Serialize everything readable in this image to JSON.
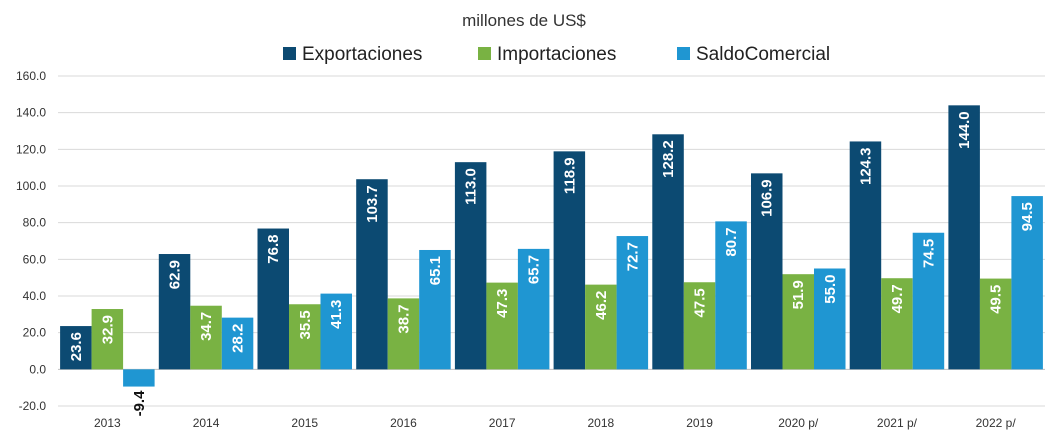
{
  "chart_data": {
    "type": "bar",
    "title": "",
    "subtitle": "millones de US$",
    "xlabel": "",
    "ylabel": "",
    "categories": [
      "2013",
      "2014",
      "2015",
      "2016",
      "2017",
      "2018",
      "2019",
      "2020 p/",
      "2021 p/",
      "2022 p/"
    ],
    "series": [
      {
        "name": "Exportaciones",
        "color": "#0c4a72",
        "values": [
          23.6,
          62.9,
          76.8,
          103.7,
          113.0,
          118.9,
          128.2,
          106.9,
          124.3,
          144.0
        ]
      },
      {
        "name": "Importaciones",
        "color": "#79b243",
        "values": [
          32.9,
          34.7,
          35.5,
          38.7,
          47.3,
          46.2,
          47.5,
          51.9,
          49.7,
          49.5
        ]
      },
      {
        "name": "SaldoComercial",
        "color": "#1f96d2",
        "values": [
          -9.4,
          28.2,
          41.3,
          65.1,
          65.7,
          72.7,
          80.7,
          55.0,
          74.5,
          94.5
        ]
      }
    ],
    "ylim": [
      -20,
      160
    ],
    "yticks": [
      "160.0",
      "140.0",
      "120.0",
      "100.0",
      "80.0",
      "60.0",
      "40.0",
      "20.0",
      "0.0",
      "-20.0"
    ],
    "grid": true,
    "legend_position": "top"
  }
}
